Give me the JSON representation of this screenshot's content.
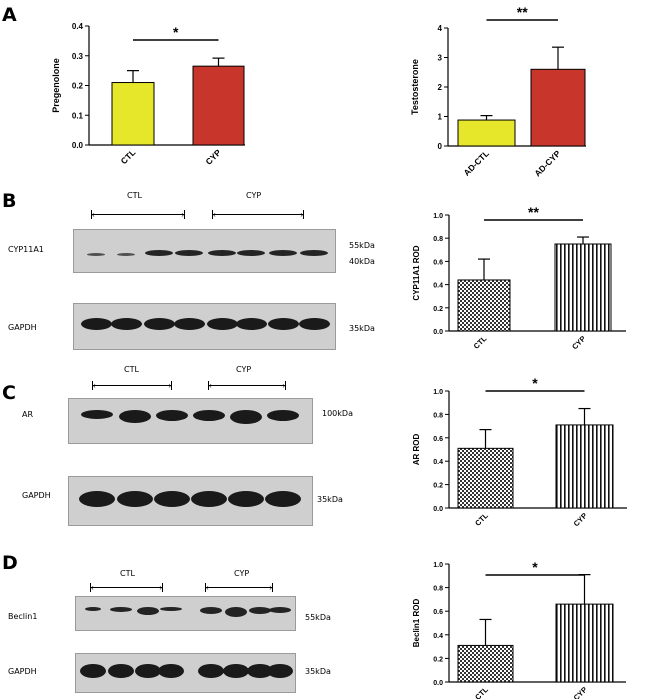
{
  "panels": {
    "A": "A",
    "B": "B",
    "C": "C",
    "D": "D"
  },
  "colors": {
    "yellow_bar": "#e6e62a",
    "red_bar": "#c8352a",
    "blot_bg": "#cfcfcf",
    "band": "#1a1a1a"
  },
  "blots": {
    "B": {
      "groups": [
        "CTL",
        "CYP"
      ],
      "rows": [
        "CYP11A1",
        "GAPDH"
      ],
      "sizes": [
        "55kDa",
        "40kDa",
        "35kDa"
      ]
    },
    "C": {
      "groups": [
        "CTL",
        "CYP"
      ],
      "rows": [
        "AR",
        "GAPDH"
      ],
      "sizes": [
        "100kDa",
        "35kDa"
      ]
    },
    "D": {
      "groups": [
        "CTL",
        "CYP"
      ],
      "rows": [
        "Beclin1",
        "GAPDH"
      ],
      "sizes": [
        "55kDa",
        "35kDa"
      ]
    }
  },
  "chart_data": [
    {
      "id": "A-left",
      "type": "bar",
      "ylabel": "Pregenolone",
      "categories": [
        "CTL",
        "CYP"
      ],
      "values": [
        0.21,
        0.265
      ],
      "errors": [
        0.04,
        0.027
      ],
      "ylim": [
        0,
        0.4
      ],
      "yticks": [
        "0.0",
        "0.1",
        "0.2",
        "0.3",
        "0.4"
      ],
      "fills": [
        "yellow",
        "red"
      ],
      "significance": "*"
    },
    {
      "id": "A-right",
      "type": "bar",
      "ylabel": "Testosterone",
      "categories": [
        "AD-CTL",
        "AD-CYP"
      ],
      "values": [
        0.88,
        2.6
      ],
      "errors": [
        0.15,
        0.75
      ],
      "ylim": [
        0,
        4
      ],
      "yticks": [
        "0",
        "1",
        "2",
        "3",
        "4"
      ],
      "fills": [
        "yellow",
        "red"
      ],
      "significance": "**"
    },
    {
      "id": "B-right",
      "type": "bar",
      "ylabel": "CYP11A1 ROD",
      "categories": [
        "CTL",
        "CYP"
      ],
      "values": [
        0.44,
        0.75
      ],
      "errors": [
        0.18,
        0.06
      ],
      "ylim": [
        0,
        1.0
      ],
      "yticks": [
        "0.0",
        "0.2",
        "0.4",
        "0.6",
        "0.8",
        "1.0"
      ],
      "fills": [
        "checker",
        "vstripe"
      ],
      "significance": "**"
    },
    {
      "id": "C-right",
      "type": "bar",
      "ylabel": "AR  ROD",
      "categories": [
        "CTL",
        "CYP"
      ],
      "values": [
        0.51,
        0.71
      ],
      "errors": [
        0.16,
        0.14
      ],
      "ylim": [
        0,
        1.0
      ],
      "yticks": [
        "0.0",
        "0.2",
        "0.4",
        "0.6",
        "0.8",
        "1.0"
      ],
      "fills": [
        "checker",
        "vstripe"
      ],
      "significance": "*"
    },
    {
      "id": "D-right",
      "type": "bar",
      "ylabel": "Beclin1 ROD",
      "categories": [
        "CTL",
        "CYP"
      ],
      "values": [
        0.31,
        0.66
      ],
      "errors": [
        0.22,
        0.25
      ],
      "ylim": [
        0,
        1.0
      ],
      "yticks": [
        "0.0",
        "0.2",
        "0.4",
        "0.6",
        "0.8",
        "1.0"
      ],
      "fills": [
        "checker",
        "vstripe"
      ],
      "significance": "*"
    }
  ]
}
